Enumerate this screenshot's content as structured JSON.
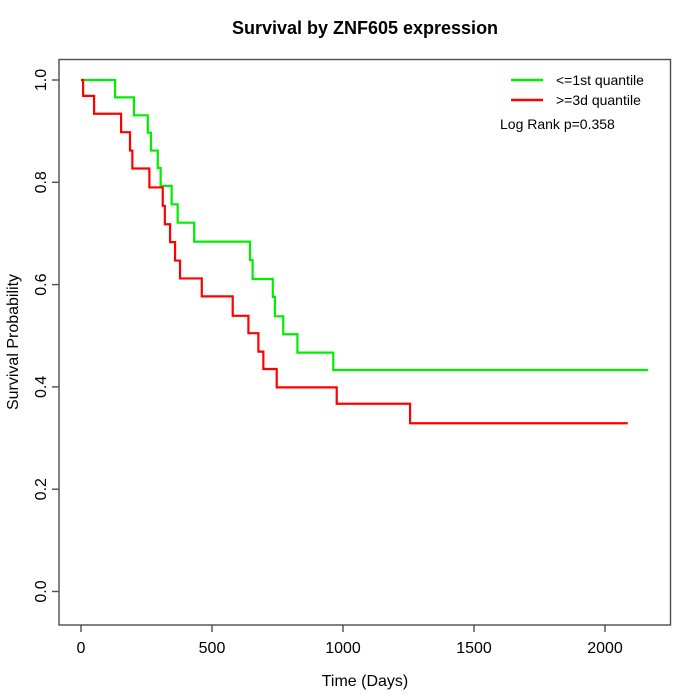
{
  "chart_data": {
    "type": "line",
    "subtype": "kaplan-meier-step",
    "title": "Survival by ZNF605 expression",
    "xlabel": "Time (Days)",
    "ylabel": "Survival Probability",
    "annotation": "Log Rank p=0.358",
    "grid": false,
    "legend_position": "top-right",
    "xlim": [
      -85,
      2250
    ],
    "ylim": [
      -0.065,
      1.04
    ],
    "x_ticks": [
      0,
      500,
      1000,
      1500,
      2000
    ],
    "y_ticks": [
      0.0,
      0.2,
      0.4,
      0.6,
      0.8,
      1.0
    ],
    "y_tick_labels": [
      "0.0",
      "0.2",
      "0.4",
      "0.6",
      "0.8",
      "1.0"
    ],
    "series": [
      {
        "name": "<=1st quantile",
        "color": "#00ee00",
        "end_day": 2165,
        "steps": [
          [
            0,
            1.0
          ],
          [
            130,
            0.966
          ],
          [
            202,
            0.931
          ],
          [
            255,
            0.897
          ],
          [
            267,
            0.862
          ],
          [
            293,
            0.828
          ],
          [
            304,
            0.793
          ],
          [
            346,
            0.757
          ],
          [
            369,
            0.721
          ],
          [
            432,
            0.684
          ],
          [
            645,
            0.648
          ],
          [
            655,
            0.611
          ],
          [
            732,
            0.576
          ],
          [
            740,
            0.538
          ],
          [
            772,
            0.503
          ],
          [
            826,
            0.467
          ],
          [
            963,
            0.433
          ]
        ]
      },
      {
        "name": ">=3d quantile",
        "color": "#ff0000",
        "end_day": 2087,
        "steps": [
          [
            0,
            1.0
          ],
          [
            8,
            0.969
          ],
          [
            50,
            0.934
          ],
          [
            153,
            0.898
          ],
          [
            187,
            0.862
          ],
          [
            196,
            0.827
          ],
          [
            261,
            0.79
          ],
          [
            312,
            0.754
          ],
          [
            320,
            0.718
          ],
          [
            340,
            0.683
          ],
          [
            359,
            0.647
          ],
          [
            378,
            0.612
          ],
          [
            461,
            0.577
          ],
          [
            579,
            0.539
          ],
          [
            639,
            0.505
          ],
          [
            677,
            0.469
          ],
          [
            696,
            0.435
          ],
          [
            747,
            0.399
          ],
          [
            976,
            0.367
          ],
          [
            1256,
            0.329
          ]
        ]
      }
    ]
  }
}
